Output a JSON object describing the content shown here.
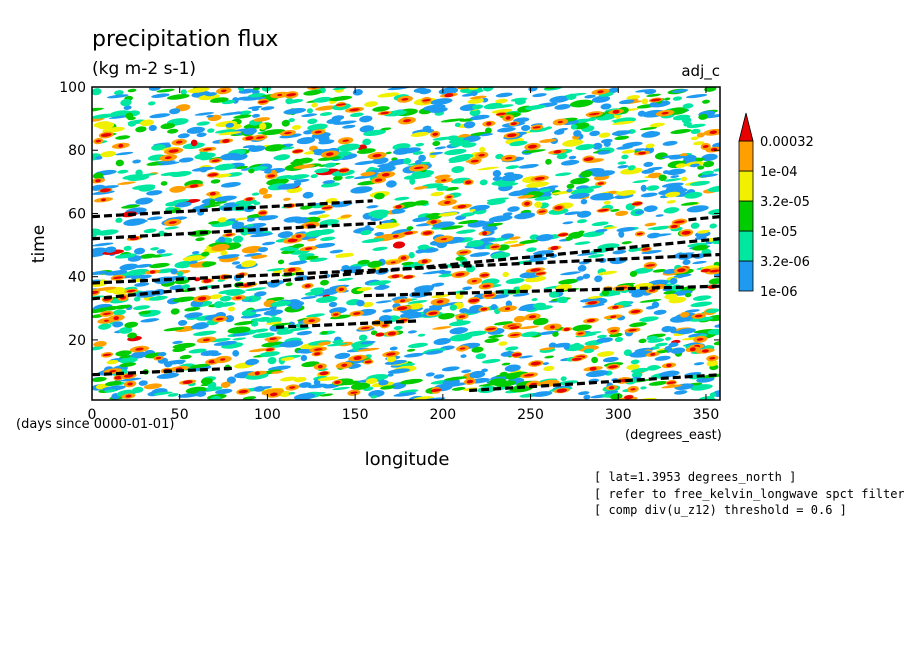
{
  "chart_data": {
    "type": "heatmap",
    "title": "precipitation flux",
    "units": "(kg m-2 s-1)",
    "experiment": "adj_c",
    "xlabel": "longitude",
    "xunits": "(degrees_east)",
    "ylabel": "time",
    "yunits": "(days since 0000-01-01)",
    "xlim": [
      0,
      358
    ],
    "ylim": [
      1,
      100
    ],
    "xticks": [
      0,
      50,
      100,
      150,
      200,
      250,
      300,
      350
    ],
    "yticks": [
      20,
      40,
      60,
      80,
      100
    ],
    "colorbar": {
      "levels": [
        "1e-06",
        "3.2e-06",
        "1e-05",
        "3.2e-05",
        "1e-04",
        "0.00032"
      ],
      "colors": [
        "#1e9bf0",
        "#00e8a0",
        "#00cc00",
        "#f0f000",
        "#ffa000",
        "#e60000"
      ],
      "extend": "max"
    },
    "kelvin_tracks": [
      {
        "x": [
          0,
          160
        ],
        "y": [
          59,
          64
        ]
      },
      {
        "x": [
          0,
          165
        ],
        "y": [
          52,
          57
        ]
      },
      {
        "x": [
          0,
          358
        ],
        "y": [
          38,
          47
        ]
      },
      {
        "x": [
          0,
          358
        ],
        "y": [
          33,
          52
        ]
      },
      {
        "x": [
          155,
          358
        ],
        "y": [
          34,
          37
        ]
      },
      {
        "x": [
          105,
          185
        ],
        "y": [
          24,
          26
        ]
      },
      {
        "x": [
          0,
          80
        ],
        "y": [
          9,
          11
        ]
      },
      {
        "x": [
          215,
          358
        ],
        "y": [
          4,
          9
        ]
      },
      {
        "x": [
          340,
          358
        ],
        "y": [
          58,
          59
        ]
      }
    ]
  },
  "notes": [
    "[ lat=1.3953 degrees_north ]",
    "[ refer to free_kelvin_longwave spct filtering ]",
    "[ comp div(u_z12) threshold = 0.6 ]"
  ]
}
